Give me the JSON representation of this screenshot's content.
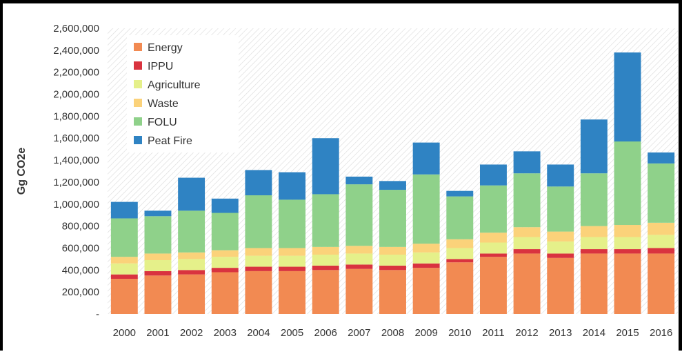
{
  "chart_data": {
    "type": "bar",
    "stacked": true,
    "ylabel": "Gg CO2e",
    "xlabel": "",
    "ylim": [
      0,
      2600000
    ],
    "yticks": [
      0,
      200000,
      400000,
      600000,
      800000,
      1000000,
      1200000,
      1400000,
      1600000,
      1800000,
      2000000,
      2200000,
      2400000,
      2600000
    ],
    "ytick_labels": [
      "-",
      "200,000",
      "400,000",
      "600,000",
      "800,000",
      "1,000,000",
      "1,200,000",
      "1,400,000",
      "1,600,000",
      "1,800,000",
      "2,000,000",
      "2,200,000",
      "2,400,000",
      "2,600,000"
    ],
    "categories": [
      "2000",
      "2001",
      "2002",
      "2003",
      "2004",
      "2005",
      "2006",
      "2007",
      "2008",
      "2009",
      "2010",
      "2011",
      "2012",
      "2013",
      "2014",
      "2015",
      "2016"
    ],
    "grid": false,
    "background_pattern": "diagonal hatch",
    "legend_position": "top-left",
    "series": [
      {
        "name": "Energy",
        "color": "#f28a52",
        "values": [
          320000,
          350000,
          360000,
          380000,
          390000,
          390000,
          400000,
          410000,
          400000,
          420000,
          470000,
          520000,
          550000,
          510000,
          550000,
          550000,
          550000
        ]
      },
      {
        "name": "IPPU",
        "color": "#d9333f",
        "values": [
          40000,
          40000,
          40000,
          40000,
          40000,
          40000,
          40000,
          40000,
          40000,
          40000,
          30000,
          30000,
          40000,
          40000,
          40000,
          40000,
          50000
        ]
      },
      {
        "name": "Agriculture",
        "color": "#e5f08a",
        "values": [
          100000,
          100000,
          100000,
          100000,
          100000,
          100000,
          100000,
          100000,
          100000,
          100000,
          100000,
          100000,
          110000,
          110000,
          110000,
          110000,
          120000
        ]
      },
      {
        "name": "Waste",
        "color": "#fbd27a",
        "values": [
          60000,
          60000,
          60000,
          60000,
          70000,
          70000,
          70000,
          70000,
          70000,
          80000,
          80000,
          90000,
          90000,
          90000,
          100000,
          110000,
          110000
        ]
      },
      {
        "name": "FOLU",
        "color": "#8fd18a",
        "values": [
          350000,
          340000,
          380000,
          340000,
          480000,
          440000,
          480000,
          560000,
          520000,
          630000,
          390000,
          430000,
          490000,
          410000,
          480000,
          760000,
          540000
        ]
      },
      {
        "name": "Peat Fire",
        "color": "#2f83c3",
        "values": [
          150000,
          50000,
          300000,
          130000,
          230000,
          250000,
          510000,
          70000,
          80000,
          290000,
          50000,
          190000,
          200000,
          200000,
          490000,
          810000,
          100000
        ]
      }
    ]
  }
}
